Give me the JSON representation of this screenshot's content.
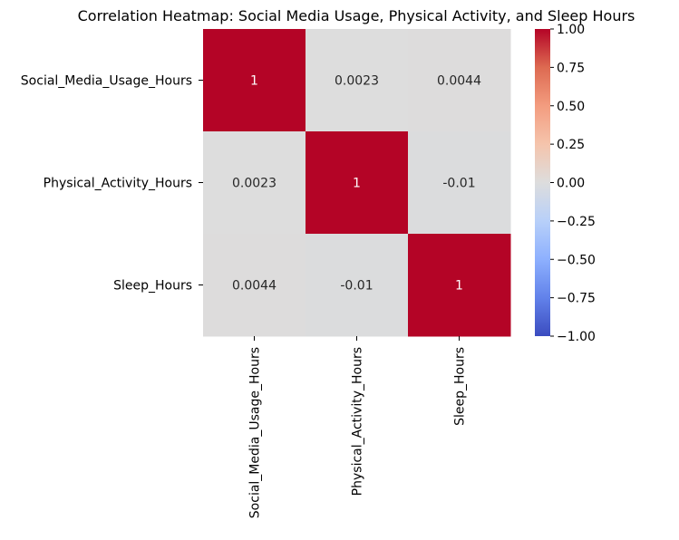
{
  "chart_data": {
    "type": "heatmap",
    "title": "Correlation Heatmap: Social Media Usage, Physical Activity, and Sleep Hours",
    "xlabel": "",
    "ylabel": "",
    "row_labels": [
      "Social_Media_Usage_Hours",
      "Physical_Activity_Hours",
      "Sleep_Hours"
    ],
    "col_labels": [
      "Social_Media_Usage_Hours",
      "Physical_Activity_Hours",
      "Sleep_Hours"
    ],
    "values": [
      [
        1,
        0.0023,
        0.0044
      ],
      [
        0.0023,
        1,
        -0.01
      ],
      [
        0.0044,
        -0.01,
        1
      ]
    ],
    "annotations": [
      [
        "1",
        "0.0023",
        "0.0044"
      ],
      [
        "0.0023",
        "1",
        "-0.01"
      ],
      [
        "0.0044",
        "-0.01",
        "1"
      ]
    ],
    "colormap": "coolwarm",
    "colors": {
      "low": "#3b4cc0",
      "mid": "#dddddd",
      "high": "#b40426"
    },
    "colorbar": {
      "range": [
        -1.0,
        1.0
      ],
      "ticks": [
        "1.00",
        "0.75",
        "0.50",
        "0.25",
        "0.00",
        "−0.25",
        "−0.50",
        "−0.75",
        "−1.00"
      ],
      "tick_values": [
        1.0,
        0.75,
        0.5,
        0.25,
        0.0,
        -0.25,
        -0.5,
        -0.75,
        -1.0
      ]
    },
    "grid": false
  }
}
